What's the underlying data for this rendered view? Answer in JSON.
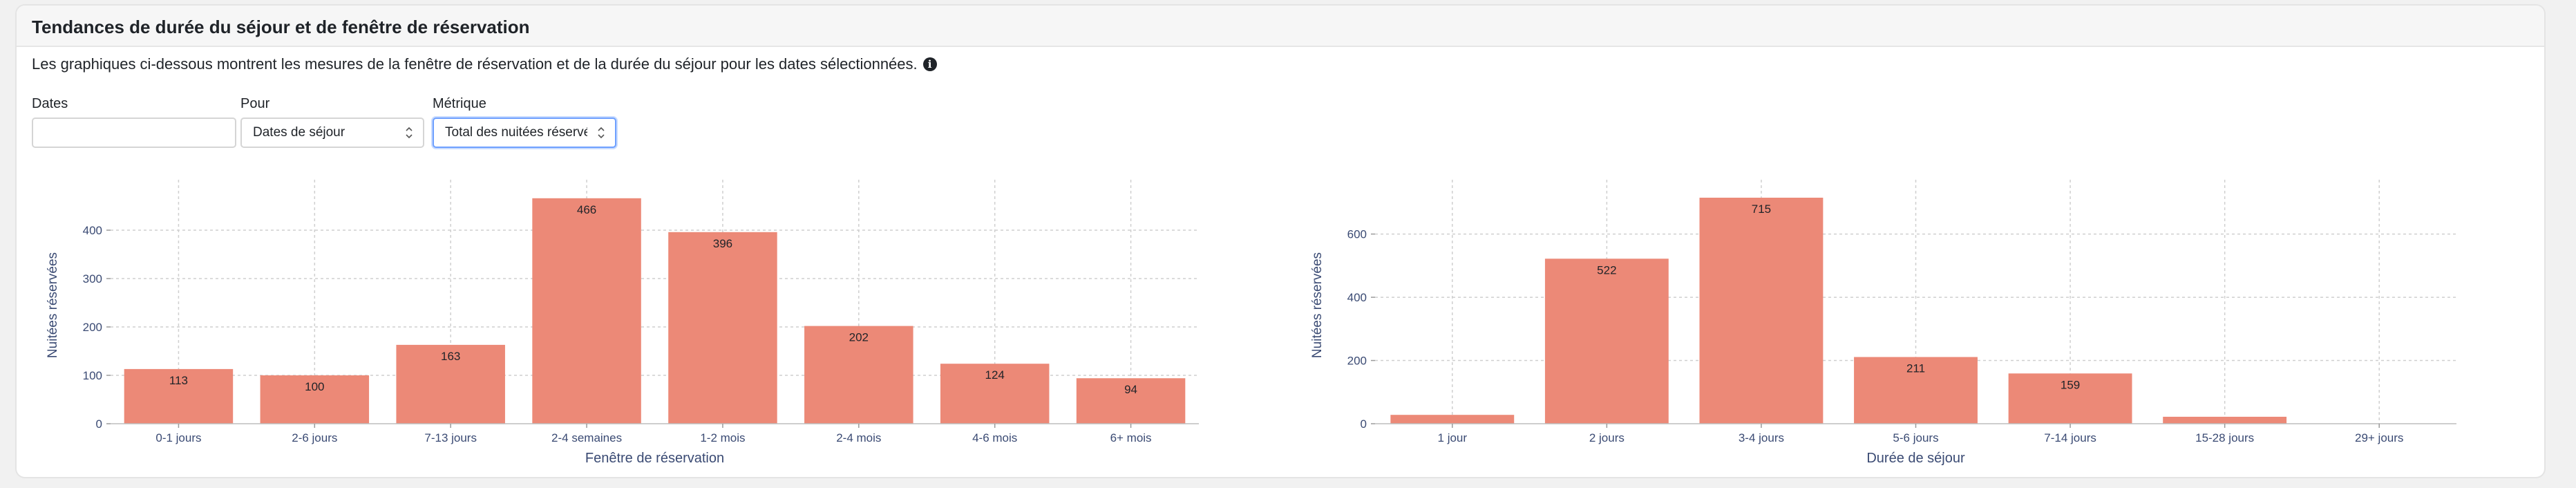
{
  "header": {
    "title": "Tendances de durée du séjour et de fenêtre de réservation"
  },
  "description": "Les graphiques ci-dessous montrent les mesures de la fenêtre de réservation et de la durée du séjour pour les dates sélectionnées.",
  "filters": {
    "dates": {
      "label": "Dates",
      "value": "",
      "placeholder": ""
    },
    "pour": {
      "label": "Pour",
      "value": "Dates de séjour"
    },
    "metrique": {
      "label": "Métrique",
      "value": "Total des nuitées réservées"
    }
  },
  "colors": {
    "bar": "#ec8977",
    "axis_text": "#3a4a73",
    "grid": "#cfcfcf"
  },
  "chart_data": [
    {
      "type": "bar",
      "title": "",
      "xlabel": "Fenêtre de réservation",
      "ylabel": "Nuitées réservées",
      "categories": [
        "0-1 jours",
        "2-6 jours",
        "7-13 jours",
        "2-4 semaines",
        "1-2 mois",
        "2-4 mois",
        "4-6 mois",
        "6+ mois"
      ],
      "values": [
        113,
        100,
        163,
        466,
        396,
        202,
        124,
        94
      ],
      "value_labels": [
        "113",
        "100",
        "163",
        "466",
        "396",
        "202",
        "124",
        "94"
      ],
      "yticks": [
        0,
        100,
        200,
        300,
        400
      ],
      "ylim": [
        0,
        490
      ],
      "grid": true
    },
    {
      "type": "bar",
      "title": "",
      "xlabel": "Durée de séjour",
      "ylabel": "Nuitées réservées",
      "categories": [
        "1 jour",
        "2 jours",
        "3-4 jours",
        "5-6 jours",
        "7-14 jours",
        "15-28 jours",
        "29+ jours"
      ],
      "values": [
        28,
        522,
        715,
        211,
        159,
        22,
        0
      ],
      "value_labels": [
        "",
        "522",
        "715",
        "211",
        "159",
        "",
        ""
      ],
      "yticks": [
        0,
        200,
        400,
        600
      ],
      "ylim": [
        0,
        750
      ],
      "grid": true
    }
  ]
}
